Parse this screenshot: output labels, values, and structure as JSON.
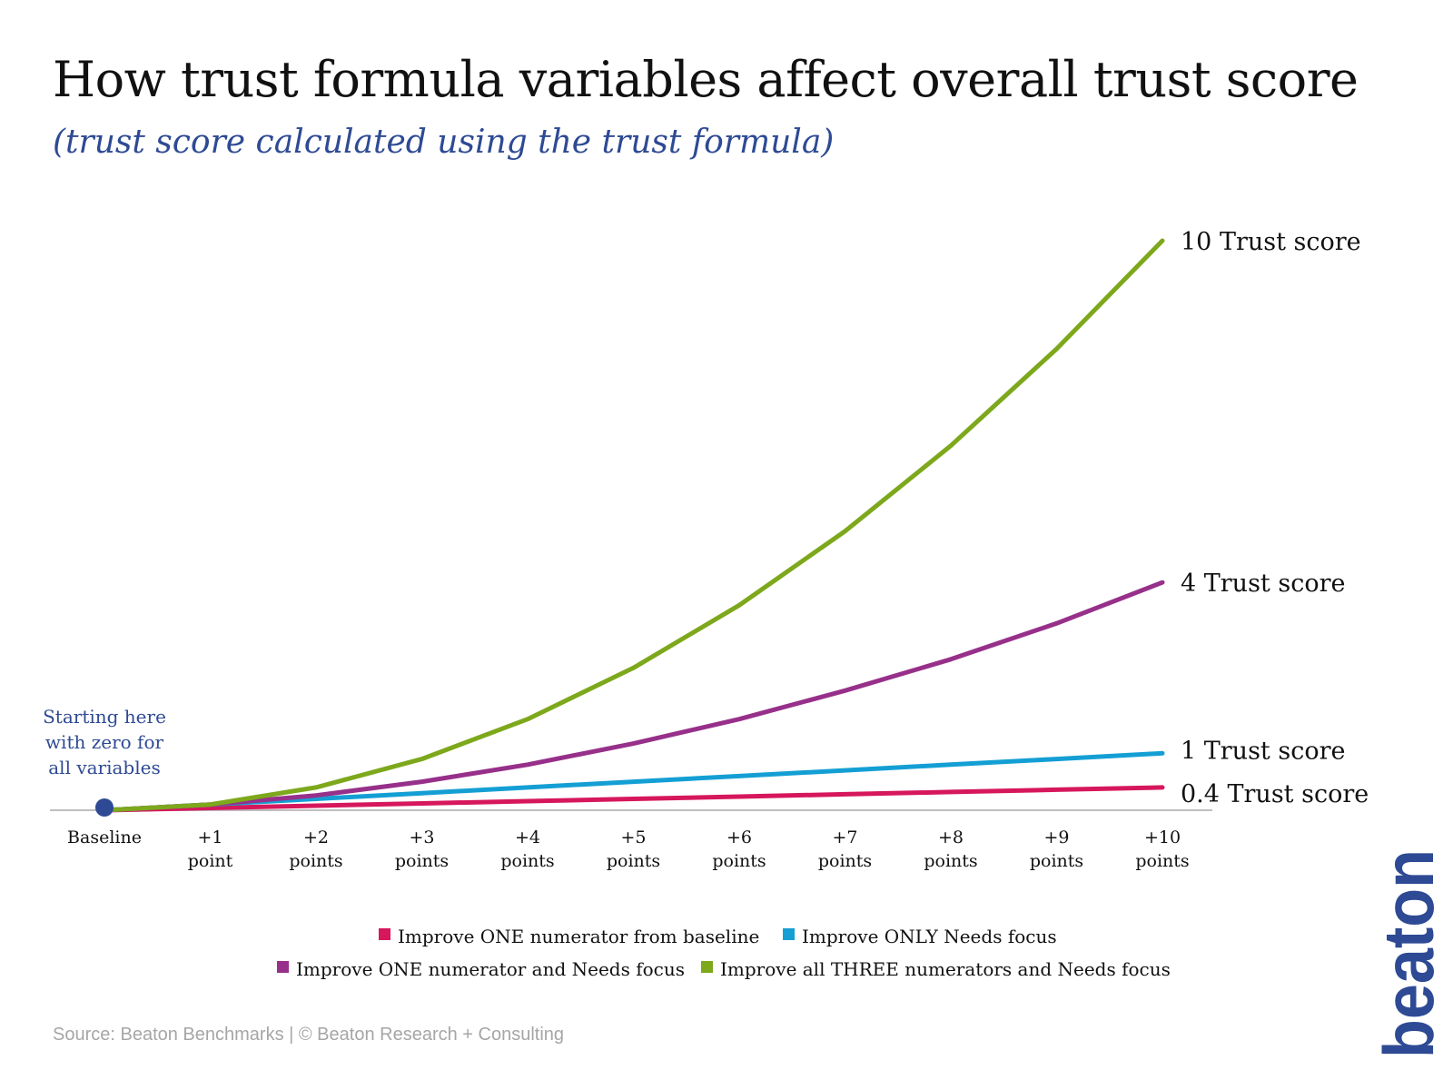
{
  "title": "How trust formula variables affect overall trust score",
  "subtitle": "(trust score calculated using the trust formula)",
  "source": "Source: Beaton Benchmarks | © Beaton Research + Consulting",
  "brand": {
    "logo_text": "beaton",
    "color": "#2e4a94"
  },
  "colors": {
    "title": "#111111",
    "subtitle": "#2e4a94",
    "annotation": "#2e4a94",
    "axis": "#bfbfbf",
    "baseline_marker": "#2e4a94"
  },
  "chart_data": {
    "type": "line",
    "title": "How trust formula variables affect overall trust score",
    "subtitle": "(trust score calculated using the trust formula)",
    "xlabel": "",
    "ylabel": "",
    "ylim": [
      0,
      10
    ],
    "grid": false,
    "y_axis_visible": false,
    "legend_position": "bottom-center",
    "categories": [
      [
        "Baseline"
      ],
      [
        "+1",
        "point"
      ],
      [
        "+2",
        "points"
      ],
      [
        "+3",
        "points"
      ],
      [
        "+4",
        "points"
      ],
      [
        "+5",
        "points"
      ],
      [
        "+6",
        "points"
      ],
      [
        "+7",
        "points"
      ],
      [
        "+8",
        "points"
      ],
      [
        "+9",
        "points"
      ],
      [
        "+10",
        "points"
      ]
    ],
    "series": [
      {
        "name": "Improve ONE numerator from baseline",
        "color": "#d6175c",
        "values": [
          0,
          0.04,
          0.08,
          0.12,
          0.16,
          0.2,
          0.24,
          0.28,
          0.32,
          0.36,
          0.4
        ],
        "end_label": "0.4 Trust score"
      },
      {
        "name": "Improve ONLY Needs focus",
        "color": "#149fd4",
        "values": [
          0,
          0.1,
          0.2,
          0.3,
          0.4,
          0.5,
          0.6,
          0.7,
          0.8,
          0.9,
          1.0
        ],
        "end_label": "1 Trust score"
      },
      {
        "name": "Improve ONE numerator and Needs focus",
        "color": "#97308a",
        "values": [
          0,
          0.1,
          0.26,
          0.5,
          0.8,
          1.17,
          1.6,
          2.1,
          2.65,
          3.28,
          4.0
        ],
        "end_label": "4 Trust score"
      },
      {
        "name": "Improve all THREE numerators and Needs focus",
        "color": "#7da81c",
        "values": [
          0,
          0.1,
          0.4,
          0.9,
          1.6,
          2.5,
          3.6,
          4.9,
          6.4,
          8.1,
          10.0
        ],
        "end_label": "10 Trust score"
      }
    ],
    "annotations": [
      {
        "text_lines": [
          "Starting here",
          "with zero for",
          "all variables"
        ],
        "at_category": "Baseline"
      }
    ]
  }
}
